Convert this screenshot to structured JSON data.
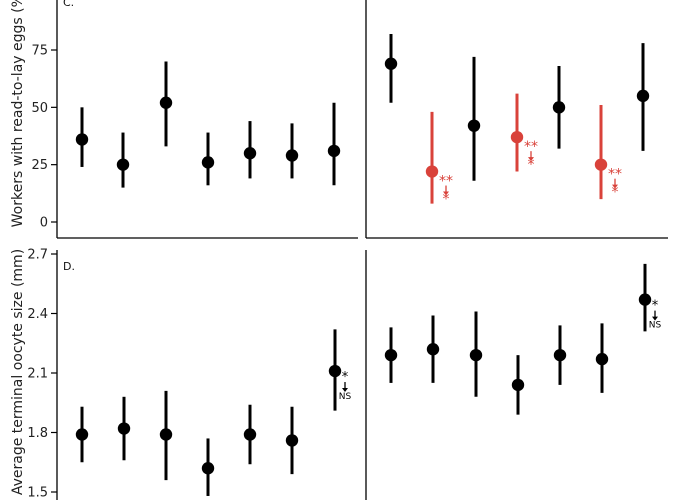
{
  "chart_data": [
    {
      "type": "scatter",
      "panel_label": "C.",
      "ylabel": "Workers with read-to-lay eggs (%)",
      "ylim": [
        0,
        90
      ],
      "yticks": [
        0,
        25,
        50,
        75
      ],
      "errorbars": true,
      "groups": [
        {
          "points": [
            {
              "y": 36,
              "lo": 24,
              "hi": 50,
              "color": "#000000"
            },
            {
              "y": 25,
              "lo": 15,
              "hi": 39,
              "color": "#000000"
            },
            {
              "y": 52,
              "lo": 33,
              "hi": 70,
              "color": "#000000"
            },
            {
              "y": 26,
              "lo": 16,
              "hi": 39,
              "color": "#000000"
            },
            {
              "y": 30,
              "lo": 19,
              "hi": 44,
              "color": "#000000"
            },
            {
              "y": 29,
              "lo": 19,
              "hi": 43,
              "color": "#000000"
            },
            {
              "y": 31,
              "lo": 16,
              "hi": 52,
              "color": "#000000"
            }
          ]
        },
        {
          "points": [
            {
              "y": 69,
              "lo": 52,
              "hi": 82,
              "color": "#000000"
            },
            {
              "y": 22,
              "lo": 8,
              "hi": 48,
              "color": "#d9423a",
              "annotation": {
                "top": "**",
                "bottom": "*"
              }
            },
            {
              "y": 42,
              "lo": 18,
              "hi": 72,
              "color": "#000000"
            },
            {
              "y": 37,
              "lo": 22,
              "hi": 56,
              "color": "#d9423a",
              "annotation": {
                "top": "**",
                "bottom": "*"
              }
            },
            {
              "y": 50,
              "lo": 32,
              "hi": 68,
              "color": "#000000"
            },
            {
              "y": 25,
              "lo": 10,
              "hi": 51,
              "color": "#d9423a",
              "annotation": {
                "top": "**",
                "bottom": "*"
              }
            },
            {
              "y": 55,
              "lo": 31,
              "hi": 78,
              "color": "#000000"
            }
          ]
        }
      ]
    },
    {
      "type": "scatter",
      "panel_label": "D.",
      "ylabel": "Average terminal oocyte size (mm)",
      "ylim": [
        1.5,
        2.7
      ],
      "yticks": [
        "1.5",
        "1.8",
        "2.1",
        "2.4",
        "2.7"
      ],
      "errorbars": true,
      "groups": [
        {
          "points": [
            {
              "y": 1.79,
              "lo": 1.65,
              "hi": 1.93,
              "color": "#000000"
            },
            {
              "y": 1.82,
              "lo": 1.66,
              "hi": 1.98,
              "color": "#000000"
            },
            {
              "y": 1.79,
              "lo": 1.56,
              "hi": 2.01,
              "color": "#000000"
            },
            {
              "y": 1.62,
              "lo": 1.48,
              "hi": 1.77,
              "color": "#000000"
            },
            {
              "y": 1.79,
              "lo": 1.64,
              "hi": 1.94,
              "color": "#000000"
            },
            {
              "y": 1.76,
              "lo": 1.59,
              "hi": 1.93,
              "color": "#000000"
            },
            {
              "y": 2.11,
              "lo": 1.91,
              "hi": 2.32,
              "color": "#000000",
              "annotation": {
                "top": "*",
                "bottom": "NS"
              }
            }
          ]
        },
        {
          "points": [
            {
              "y": 2.19,
              "lo": 2.05,
              "hi": 2.33,
              "color": "#000000"
            },
            {
              "y": 2.22,
              "lo": 2.05,
              "hi": 2.39,
              "color": "#000000"
            },
            {
              "y": 2.19,
              "lo": 1.98,
              "hi": 2.41,
              "color": "#000000"
            },
            {
              "y": 2.04,
              "lo": 1.89,
              "hi": 2.19,
              "color": "#000000"
            },
            {
              "y": 2.19,
              "lo": 2.04,
              "hi": 2.34,
              "color": "#000000"
            },
            {
              "y": 2.17,
              "lo": 2.0,
              "hi": 2.35,
              "color": "#000000"
            },
            {
              "y": 2.47,
              "lo": 2.31,
              "hi": 2.65,
              "color": "#000000",
              "annotation": {
                "top": "*",
                "bottom": "NS"
              }
            }
          ]
        }
      ]
    }
  ]
}
